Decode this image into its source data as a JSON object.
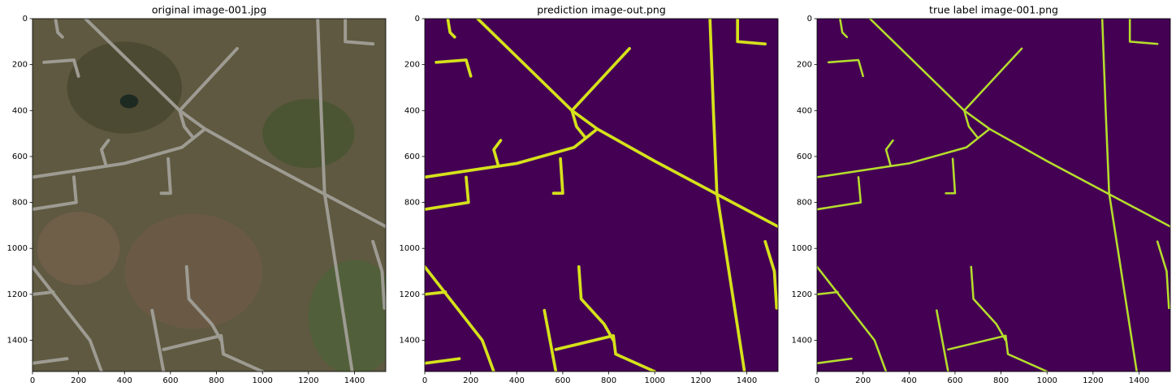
{
  "chart_data": [
    {
      "type": "image",
      "title": "original image-001.jpg",
      "xlim": [
        0,
        1536
      ],
      "ylim": [
        1536,
        0
      ],
      "xticks": [
        0,
        200,
        400,
        600,
        800,
        1000,
        1200,
        1400
      ],
      "yticks": [
        0,
        200,
        400,
        600,
        800,
        1000,
        1200,
        1400
      ]
    },
    {
      "type": "image",
      "title": "prediction image-out.png",
      "xlim": [
        0,
        1536
      ],
      "ylim": [
        1536,
        0
      ],
      "xticks": [
        0,
        200,
        400,
        600,
        800,
        1000,
        1200,
        1400
      ],
      "yticks": [
        0,
        200,
        400,
        600,
        800,
        1000,
        1200,
        1400
      ]
    },
    {
      "type": "image",
      "title": "true label image-001.png",
      "xlim": [
        0,
        1536
      ],
      "ylim": [
        1536,
        0
      ],
      "xticks": [
        0,
        200,
        400,
        600,
        800,
        1000,
        1200,
        1400
      ],
      "yticks": [
        0,
        200,
        400,
        600,
        800,
        1000,
        1200,
        1400
      ]
    }
  ]
}
